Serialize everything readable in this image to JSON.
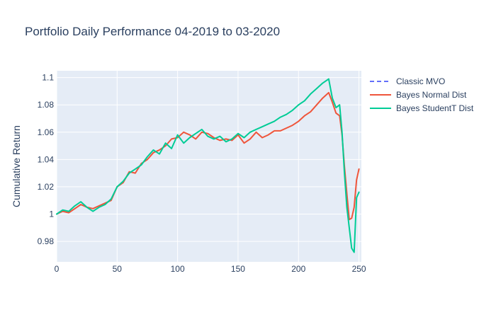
{
  "chart_data": {
    "type": "line",
    "title": "Portfolio Daily Performance 04-2019 to 03-2020",
    "xlabel": "",
    "ylabel": "Cumulative Return",
    "xlim": [
      0,
      252
    ],
    "ylim": [
      0.965,
      1.105
    ],
    "x_ticks": [
      0,
      50,
      100,
      150,
      200,
      250
    ],
    "y_ticks": [
      0.98,
      1,
      1.02,
      1.04,
      1.06,
      1.08,
      1.1
    ],
    "x_tick_labels": [
      "0",
      "50",
      "100",
      "150",
      "200",
      "250"
    ],
    "y_tick_labels": [
      "0.98",
      "1",
      "1.02",
      "1.04",
      "1.06",
      "1.08",
      "1.1"
    ],
    "grid": true,
    "legend_position": "right",
    "background": "#e5ecf6",
    "series": [
      {
        "name": "Classic MVO",
        "color": "#636efa",
        "dash": "dash",
        "x": [],
        "values": []
      },
      {
        "name": "Bayes Normal Dist",
        "color": "#ef553b",
        "dash": "solid",
        "x": [
          0,
          5,
          10,
          15,
          20,
          25,
          30,
          35,
          40,
          45,
          50,
          55,
          60,
          65,
          70,
          75,
          80,
          85,
          90,
          95,
          100,
          105,
          110,
          115,
          120,
          125,
          130,
          135,
          140,
          145,
          150,
          155,
          160,
          165,
          170,
          175,
          180,
          185,
          190,
          195,
          200,
          205,
          210,
          215,
          220,
          225,
          228,
          231,
          234,
          236,
          238,
          240,
          242,
          244,
          246,
          248,
          250
        ],
        "values": [
          1.0,
          1.002,
          1.001,
          1.004,
          1.007,
          1.005,
          1.004,
          1.006,
          1.008,
          1.01,
          1.02,
          1.023,
          1.031,
          1.03,
          1.037,
          1.04,
          1.045,
          1.047,
          1.05,
          1.055,
          1.056,
          1.06,
          1.058,
          1.055,
          1.06,
          1.059,
          1.056,
          1.054,
          1.055,
          1.054,
          1.058,
          1.052,
          1.055,
          1.06,
          1.056,
          1.058,
          1.061,
          1.061,
          1.063,
          1.065,
          1.068,
          1.072,
          1.075,
          1.08,
          1.085,
          1.089,
          1.082,
          1.074,
          1.072,
          1.058,
          1.035,
          1.015,
          0.996,
          0.997,
          1.005,
          1.025,
          1.033
        ]
      },
      {
        "name": "Bayes StudentT Dist",
        "color": "#00cc96",
        "dash": "solid",
        "x": [
          0,
          5,
          10,
          15,
          20,
          25,
          30,
          35,
          40,
          45,
          50,
          55,
          60,
          65,
          70,
          75,
          80,
          85,
          90,
          95,
          100,
          105,
          110,
          115,
          120,
          125,
          130,
          135,
          140,
          145,
          150,
          155,
          160,
          165,
          170,
          175,
          180,
          185,
          190,
          195,
          200,
          205,
          210,
          215,
          220,
          225,
          228,
          231,
          234,
          236,
          238,
          240,
          242,
          244,
          246,
          248,
          250
        ],
        "values": [
          1.0,
          1.003,
          1.002,
          1.006,
          1.009,
          1.005,
          1.002,
          1.005,
          1.007,
          1.011,
          1.02,
          1.024,
          1.03,
          1.033,
          1.036,
          1.042,
          1.047,
          1.044,
          1.052,
          1.048,
          1.058,
          1.052,
          1.056,
          1.059,
          1.062,
          1.057,
          1.055,
          1.057,
          1.053,
          1.055,
          1.059,
          1.056,
          1.06,
          1.062,
          1.064,
          1.066,
          1.068,
          1.071,
          1.073,
          1.076,
          1.08,
          1.083,
          1.088,
          1.092,
          1.096,
          1.099,
          1.085,
          1.078,
          1.08,
          1.06,
          1.03,
          1.005,
          0.99,
          0.975,
          0.972,
          1.012,
          1.016
        ]
      }
    ]
  }
}
